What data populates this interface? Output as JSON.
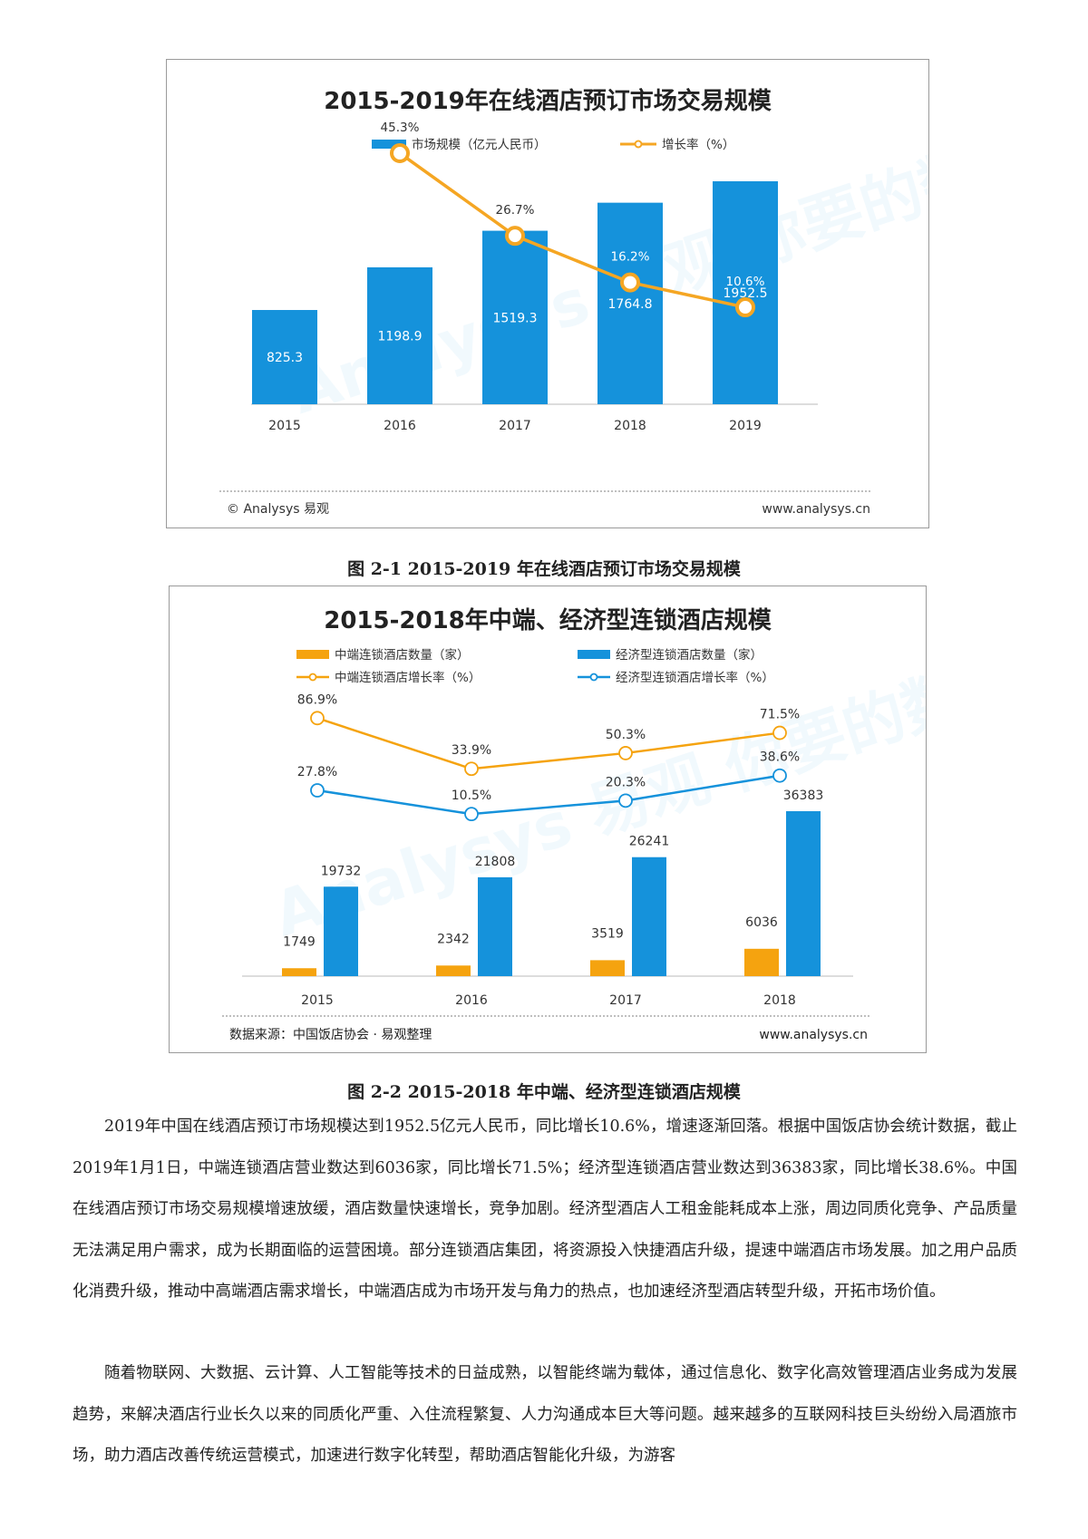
{
  "charts": [
    {
      "title": "2015-2019年在线酒店预订市场交易规模",
      "legend": [
        "市场规模（亿元人民币）",
        "增长率（%）"
      ],
      "footer_left": "© Analysys 易观",
      "footer_right": "www.analysys.cn",
      "watermark": "Analysys 易观 你要的数据能力",
      "colors": {
        "bar": "#1592db",
        "line": "#f5a623"
      }
    },
    {
      "title": "2015-2018年中端、经济型连锁酒店规模",
      "legend": [
        "中端连锁酒店数量（家）",
        "经济型连锁酒店数量（家）",
        "中端连锁酒店增长率（%）",
        "经济型连锁酒店增长率（%）"
      ],
      "footer_left": "数据来源：中国饭店协会 · 易观整理",
      "footer_right": "www.analysys.cn",
      "watermark": "Analysys 易观 你要的数据能力",
      "colors": {
        "orange": "#f5a30f",
        "blue": "#1592db"
      }
    }
  ],
  "chart_data": [
    {
      "type": "bar",
      "title": "2015-2019年在线酒店预订市场交易规模",
      "categories": [
        "2015",
        "2016",
        "2017",
        "2018",
        "2019"
      ],
      "series": [
        {
          "name": "市场规模（亿元人民币）",
          "type": "bar",
          "values": [
            825.3,
            1198.9,
            1519.3,
            1764.8,
            1952.5
          ],
          "labels": [
            "825.3",
            "1198.9",
            "1519.3",
            "1764.8",
            "1952.5"
          ]
        },
        {
          "name": "增长率（%）",
          "type": "line",
          "values": [
            null,
            45.3,
            26.7,
            16.2,
            10.6
          ],
          "labels": [
            "",
            "45.3%",
            "26.7%",
            "16.2%",
            "10.6%"
          ]
        }
      ],
      "legend_position": "top-center",
      "grid": false
    },
    {
      "type": "bar",
      "title": "2015-2018年中端、经济型连锁酒店规模",
      "categories": [
        "2015",
        "2016",
        "2017",
        "2018"
      ],
      "series": [
        {
          "name": "中端连锁酒店数量（家）",
          "type": "bar",
          "values": [
            1749,
            2342,
            3519,
            6036
          ],
          "labels": [
            "1749",
            "2342",
            "3519",
            "6036"
          ]
        },
        {
          "name": "经济型连锁酒店数量（家）",
          "type": "bar",
          "values": [
            19732,
            21808,
            26241,
            36383
          ],
          "labels": [
            "19732",
            "21808",
            "26241",
            "36383"
          ]
        },
        {
          "name": "中端连锁酒店增长率（%）",
          "type": "line",
          "values": [
            86.9,
            33.9,
            50.3,
            71.5
          ],
          "labels": [
            "86.9%",
            "33.9%",
            "50.3%",
            "71.5%"
          ]
        },
        {
          "name": "经济型连锁酒店增长率（%）",
          "type": "line",
          "values": [
            27.8,
            10.5,
            20.3,
            38.6
          ],
          "labels": [
            "27.8%",
            "10.5%",
            "20.3%",
            "38.6%"
          ]
        }
      ],
      "legend_position": "top",
      "grid": false
    }
  ],
  "captions": [
    "图 2-1 2015-2019 年在线酒店预订市场交易规模",
    "图 2-2 2015-2018 年中端、经济型连锁酒店规模"
  ],
  "paragraphs": [
    "2019年中国在线酒店预订市场规模达到1952.5亿元人民币，同比增长10.6%，增速逐渐回落。根据中国饭店协会统计数据，截止2019年1月1日，中端连锁酒店营业数达到6036家，同比增长71.5%；经济型连锁酒店营业数达到36383家，同比增长38.6%。中国在线酒店预订市场交易规模增速放缓，酒店数量快速增长，竞争加剧。经济型酒店人工租金能耗成本上涨，周边同质化竞争、产品质量无法满足用户需求，成为长期面临的运营困境。部分连锁酒店集团，将资源投入快捷酒店升级，提速中端酒店市场发展。加之用户品质化消费升级，推动中高端酒店需求增长，中端酒店成为市场开发与角力的热点，也加速经济型酒店转型升级，开拓市场价值。",
    "随着物联网、大数据、云计算、人工智能等技术的日益成熟，以智能终端为载体，通过信息化、数字化高效管理酒店业务成为发展趋势，来解决酒店行业长久以来的同质化严重、入住流程繁复、人力沟通成本巨大等问题。越来越多的互联网科技巨头纷纷入局酒旅市场，助力酒店改善传统运营模式，加速进行数字化转型，帮助酒店智能化升级，为游客"
  ]
}
